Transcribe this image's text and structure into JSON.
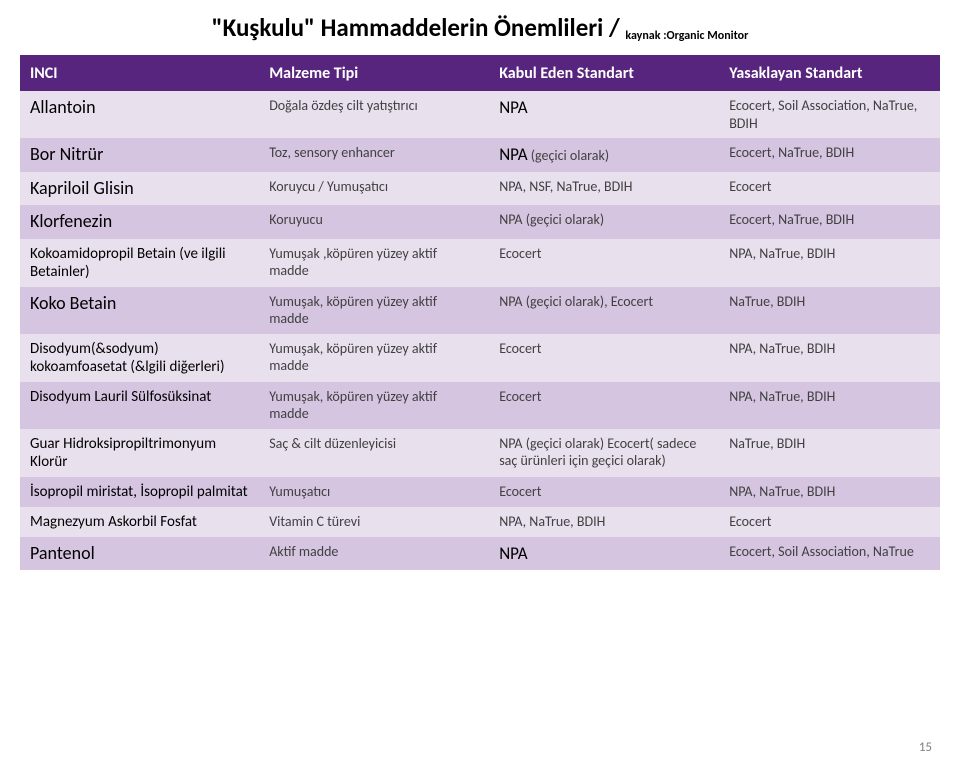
{
  "title_main": "\"Kuşkulu\" Hammaddelerin Önemlileri / ",
  "title_sub": "kaynak :Organic Monitor",
  "headers": [
    "INCI",
    "Malzeme Tipi",
    "Kabul Eden Standart",
    "Yasaklayan Standart"
  ],
  "rows": [
    {
      "c0": "Allantoin",
      "c1": "Doğala özdeş cilt yatıştırıcı",
      "c2": "NPA",
      "c3": "Ecocert, Soil Association, NaTrue, BDIH",
      "c2npa": true
    },
    {
      "c0": "Bor Nitrür",
      "c1": "Toz, sensory enhancer",
      "c2": "NPA (geçici olarak)",
      "c3": "Ecocert, NaTrue, BDIH",
      "c2npa": true
    },
    {
      "c0": "Kapriloil Glisin",
      "c1": "Koruycu / Yumuşatıcı",
      "c2": "NPA, NSF, NaTrue, BDIH",
      "c3": "Ecocert"
    },
    {
      "c0": "Klorfenezin",
      "c1": "Koruyucu",
      "c2": "NPA (geçici olarak)",
      "c3": "Ecocert, NaTrue, BDIH"
    },
    {
      "c0": "Kokoamidopropil Betain (ve ilgili Betainler)",
      "c1": "Yumuşak ,köpüren yüzey aktif madde",
      "c2": "Ecocert",
      "c3": "NPA, NaTrue, BDIH",
      "small": true
    },
    {
      "c0": "Koko Betain",
      "c1": "Yumuşak, köpüren yüzey aktif madde",
      "c2": "NPA (geçici olarak), Ecocert",
      "c3": "NaTrue, BDIH"
    },
    {
      "c0": "Disodyum(&sodyum) kokoamfoasetat (&lgili diğerleri)",
      "c1": "Yumuşak, köpüren yüzey aktif madde",
      "c2": "Ecocert",
      "c3": "NPA, NaTrue, BDIH",
      "small": true
    },
    {
      "c0": "Disodyum Lauril Sülfosüksinat",
      "c1": "Yumuşak, köpüren yüzey aktif madde",
      "c2": "Ecocert",
      "c3": "NPA, NaTrue, BDIH",
      "small": true
    },
    {
      "c0": "Guar Hidroksipropiltrimonyum Klorür",
      "c1": "Saç & cilt düzenleyicisi",
      "c2": "NPA (geçici olarak) Ecocert( sadece saç ürünleri için geçici olarak)",
      "c3": "NaTrue, BDIH",
      "small": true
    },
    {
      "c0": "İsopropil miristat, İsopropil palmitat",
      "c1": "Yumuşatıcı",
      "c2": "Ecocert",
      "c3": "NPA, NaTrue, BDIH",
      "small": true
    },
    {
      "c0": "Magnezyum Askorbil Fosfat",
      "c1": "Vitamin C türevi",
      "c2": "NPA, NaTrue, BDIH",
      "c3": "Ecocert",
      "small": true
    },
    {
      "c0": "Pantenol",
      "c1": "Aktif madde",
      "c2": "NPA",
      "c3": "Ecocert, Soil Association, NaTrue",
      "c2npa": true
    }
  ],
  "page_number": "15"
}
